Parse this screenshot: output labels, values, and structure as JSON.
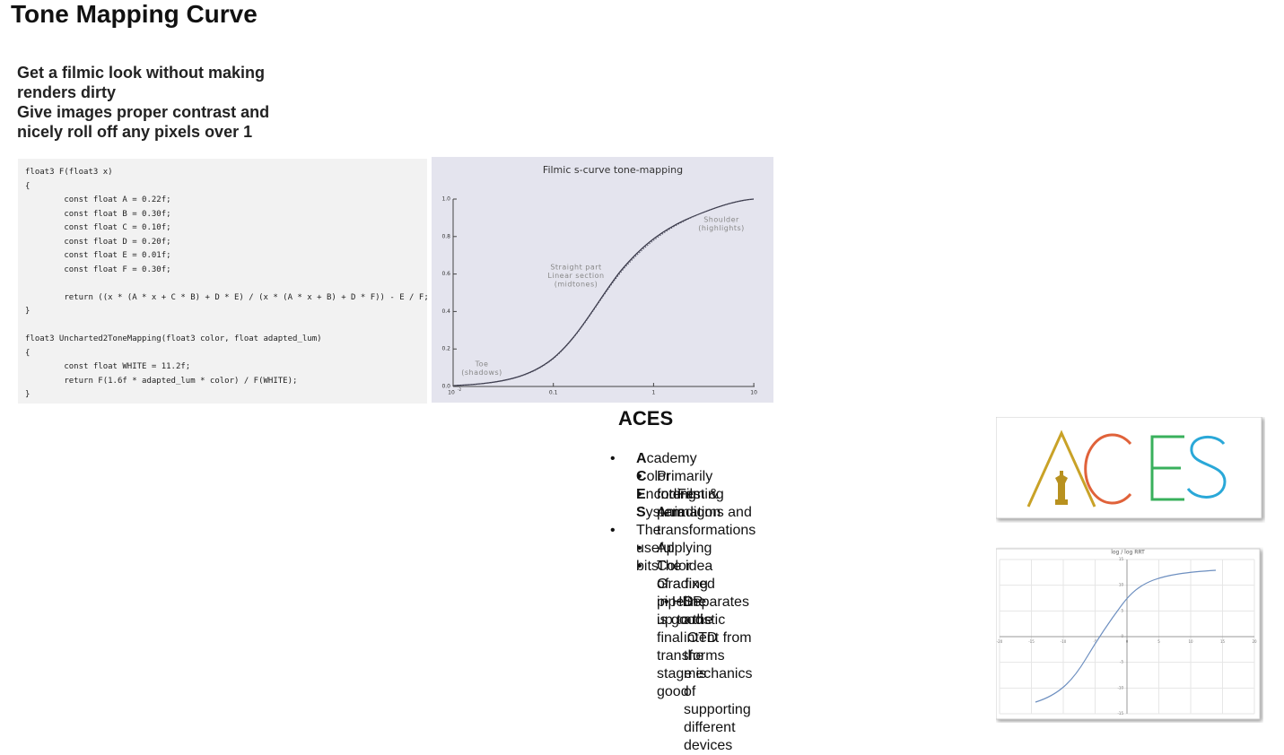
{
  "title": "Tone Mapping Curve",
  "intro": [
    "Get a filmic look without making",
    "renders dirty",
    "Give images proper contrast and",
    "nicely roll off any pixels over 1"
  ],
  "code": [
    "float3 F(float3 x)",
    "{",
    "        const float A = 0.22f;",
    "        const float B = 0.30f;",
    "        const float C = 0.10f;",
    "        const float D = 0.20f;",
    "        const float E = 0.01f;",
    "        const float F = 0.30f;",
    "",
    "        return ((x * (A * x + C * B) + D * E) / (x * (A * x + B) + D * F)) - E / F;",
    "}",
    "",
    "float3 Uncharted2ToneMapping(float3 color, float adapted_lum)",
    "{",
    "        const float WHITE = 11.2f;",
    "        return F(1.6f * adapted_lum * color) / F(WHITE);",
    "}"
  ],
  "filmic_chart": {
    "title": "Filmic s-curve tone-mapping",
    "yticks": [
      "1.0",
      "0.8",
      "0.6",
      "0.4",
      "0.2",
      "0.0"
    ],
    "xticks": [
      {
        "base": "10",
        "exp": "-2"
      },
      "0.1",
      "1",
      "10"
    ],
    "annotations": [
      [
        "Shoulder",
        "(highlights)"
      ],
      [
        "Straight part",
        "Linear section",
        "(midtones)"
      ],
      [
        "Toe",
        "(shadows)"
      ]
    ]
  },
  "aces": {
    "heading": "ACES",
    "items": [
      {
        "level": 0,
        "parts": [
          "A",
          "cademy ",
          "C",
          "olor ",
          "E",
          "ncoding ",
          "S",
          "ystem"
        ]
      },
      {
        "level": 1,
        "lines": [
          "Primarily for Film & Animation"
        ]
      },
      {
        "level": 1,
        "lines": [
          "Interesting paradigms and transformations"
        ]
      },
      {
        "level": 0,
        "lines": [
          "The useful bits"
        ],
        "gap": true
      },
      {
        "level": 1,
        "lines": [
          "Applying Color Grading in HDR is good"
        ]
      },
      {
        "level": 1,
        "lines": [
          "The idea of a fixed pipeline up to the final OTD",
          "transforms stage is good"
        ]
      },
      {
        "level": 2,
        "lines": [
          "Separates artistic intent from the mechanics of",
          "supporting different devices"
        ]
      }
    ]
  },
  "rrt_chart": {
    "title": "log / log RRT",
    "xticks": [
      "-20",
      "-15",
      "-10",
      "-5",
      "0",
      "5",
      "10",
      "15",
      "20"
    ],
    "yticks": [
      "15",
      "10",
      "5",
      "0",
      "-5",
      "-10",
      "-15"
    ]
  }
}
